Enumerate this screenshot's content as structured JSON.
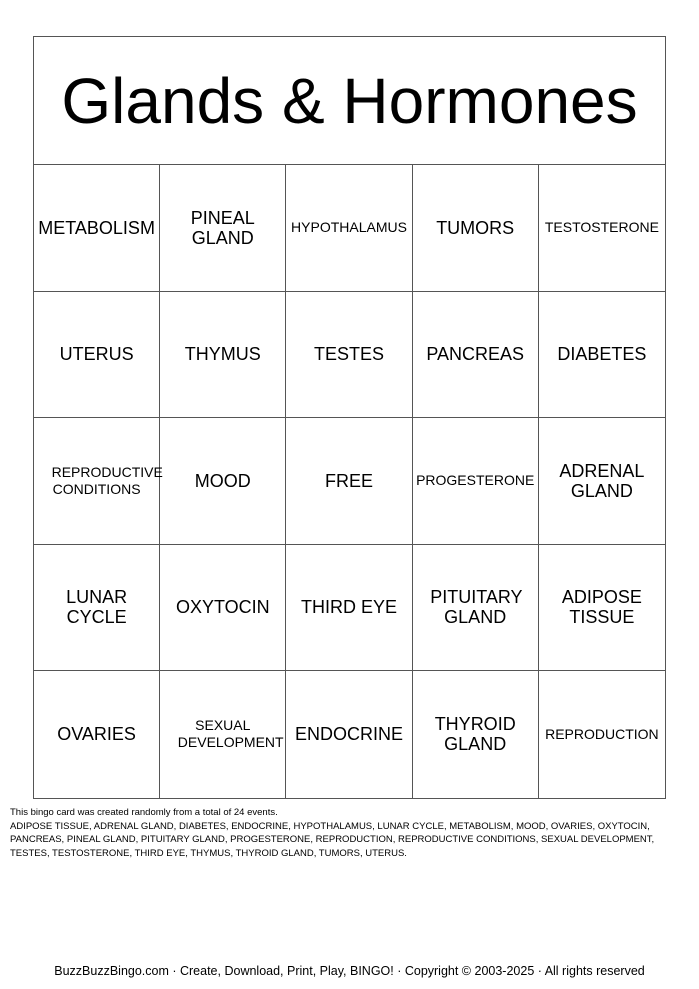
{
  "title": "Glands & Hormones",
  "cells": [
    "METABOLISM",
    "PINEAL GLAND",
    "HYPOTHALAMUS",
    "TUMORS",
    "TESTOSTERONE",
    "UTERUS",
    "THYMUS",
    "TESTES",
    "PANCREAS",
    "DIABETES",
    "REPRODUCTIVE CONDITIONS",
    "MOOD",
    "FREE",
    "PROGESTERONE",
    "ADRENAL GLAND",
    "LUNAR CYCLE",
    "OXYTOCIN",
    "THIRD EYE",
    "PITUITARY GLAND",
    "ADIPOSE TISSUE",
    "OVARIES",
    "SEXUAL DEVELOPMENT",
    "ENDOCRINE",
    "THYROID GLAND",
    "REPRODUCTION"
  ],
  "note_intro": "This bingo card was created randomly from a total of 24 events.",
  "note_list": "ADIPOSE TISSUE, ADRENAL GLAND, DIABETES, ENDOCRINE, HYPOTHALAMUS, LUNAR CYCLE, METABOLISM, MOOD, OVARIES, OXYTOCIN, PANCREAS, PINEAL GLAND, PITUITARY GLAND, PROGESTERONE, REPRODUCTION, REPRODUCTIVE CONDITIONS, SEXUAL DEVELOPMENT, TESTES, TESTOSTERONE, THIRD EYE, THYMUS, THYROID GLAND, TUMORS, UTERUS.",
  "footer": "BuzzBuzzBingo.com · Create, Download, Print, Play, BINGO! · Copyright © 2003-2025 · All rights reserved"
}
